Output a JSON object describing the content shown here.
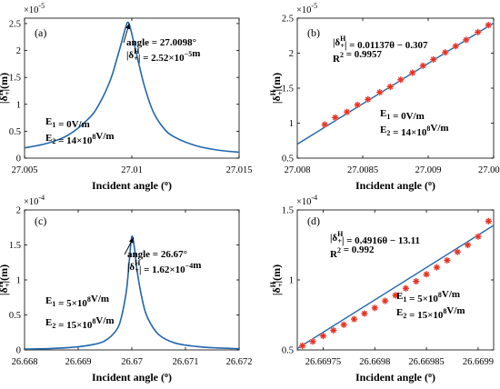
{
  "chart_data": [
    {
      "panel": "(a)",
      "type": "line",
      "xlabel": "Incident angle",
      "xlabel_unit": "(o)",
      "ylabel": "|δ+H|(m)",
      "ylabel_text": "|δ",
      "ylabel_sup": "H",
      "ylabel_sub": "+",
      "ylabel_tail": "|(m)",
      "xlim": [
        27.005,
        27.015
      ],
      "ylim": [
        0,
        2.6
      ],
      "y_multiplier": "×10",
      "y_multiplier_exp": "-5",
      "xticks": [
        "27.005",
        "27.01",
        "27.015"
      ],
      "xtick_values": [
        27.005,
        27.01,
        27.015
      ],
      "yticks": [
        "0",
        "0.5",
        "1",
        "1.5",
        "2",
        "2.5"
      ],
      "ytick_values": [
        0,
        0.5,
        1,
        1.5,
        2,
        2.5
      ],
      "series": [
        {
          "color": "#2166ac",
          "x": [
            27.005,
            27.006,
            27.007,
            27.008,
            27.0085,
            27.009,
            27.0093,
            27.0095,
            27.0097,
            27.0098,
            27.0099,
            27.0101,
            27.0103,
            27.0106,
            27.011,
            27.0115,
            27.012,
            27.013,
            27.014,
            27.015
          ],
          "y": [
            0.19,
            0.27,
            0.42,
            0.74,
            1.02,
            1.45,
            1.84,
            2.12,
            2.41,
            2.52,
            2.46,
            2.14,
            1.8,
            1.32,
            0.86,
            0.55,
            0.39,
            0.23,
            0.15,
            0.11
          ]
        }
      ],
      "annotations": [
        {
          "lines": [
            {
              "t": "angle = 27.0098°"
            },
            {
              "t": "|δ",
              "sup": "H",
              "sub": "+",
              "t2": "| = 2.52×10",
              "exp": "−5",
              "t3": "m"
            }
          ]
        },
        {
          "lines": [
            {
              "t": "E",
              "sub": "1",
              "t2": " = 0V/m"
            },
            {
              "t": "E",
              "sub": "2",
              "t2": " = 14×10",
              "exp": "8",
              "t3": "V/m"
            }
          ]
        }
      ]
    },
    {
      "panel": "(b)",
      "type": "scatter",
      "xlabel": "Incident angle",
      "xlabel_unit": "(o)",
      "ylabel": "|δ+H|(m)",
      "ylabel_text": "|δ",
      "ylabel_sup": "H",
      "ylabel_sub": "+",
      "ylabel_tail": "|(m)",
      "xlim": [
        27.008,
        27.0095
      ],
      "ylim": [
        0.5,
        2.5
      ],
      "y_multiplier": "×10",
      "y_multiplier_exp": "-5",
      "xticks": [
        "27.008",
        "27.0085",
        "27.009",
        "27.0095"
      ],
      "xtick_values": [
        27.008,
        27.0085,
        27.009,
        27.0095
      ],
      "yticks": [
        "0.5",
        "1",
        "1.5",
        "2",
        "2.5"
      ],
      "ytick_values": [
        0.5,
        1,
        1.5,
        2,
        2.5
      ],
      "fit": {
        "x": [
          27.008,
          27.0095
        ],
        "y": [
          0.7,
          2.43
        ],
        "color": "#2166ac"
      },
      "series": [
        {
          "marker": "asterisk",
          "color": "#e6301b",
          "x": [
            27.00821,
            27.00829,
            27.00838,
            27.00846,
            27.00854,
            27.00863,
            27.00871,
            27.00879,
            27.00888,
            27.00896,
            27.00904,
            27.00913,
            27.00921,
            27.00929,
            27.00938,
            27.00946
          ],
          "y": [
            0.98,
            1.08,
            1.16,
            1.26,
            1.34,
            1.44,
            1.52,
            1.62,
            1.72,
            1.82,
            1.91,
            2.01,
            2.1,
            2.19,
            2.3,
            2.4
          ]
        }
      ],
      "annotations": [
        {
          "lines": [
            {
              "t": "|δ",
              "sup": "H",
              "sub": "+",
              "t2": "| = 0.01137θ − 0.307"
            },
            {
              "t": "R",
              "exp": "2",
              "t3": " = 0.9957"
            }
          ]
        },
        {
          "lines": [
            {
              "t": "E",
              "sub": "1",
              "t2": " = 0V/m"
            },
            {
              "t": "E",
              "sub": "2",
              "t2": " = 14×10",
              "exp": "8",
              "t3": "V/m"
            }
          ]
        }
      ]
    },
    {
      "panel": "(c)",
      "type": "line",
      "xlabel": "Incident angle",
      "xlabel_unit": "(o)",
      "ylabel": "|δ+H|(m)",
      "ylabel_text": "|δ",
      "ylabel_sup": "H",
      "ylabel_sub": "+",
      "ylabel_tail": "|(m)",
      "xlim": [
        26.668,
        26.672
      ],
      "ylim": [
        0,
        2
      ],
      "y_multiplier": "×10",
      "y_multiplier_exp": "-4",
      "xticks": [
        "26.668",
        "26.669",
        "26.67",
        "26.671",
        "26.672"
      ],
      "xtick_values": [
        26.668,
        26.669,
        26.67,
        26.671,
        26.672
      ],
      "yticks": [
        "0",
        "0.5",
        "1",
        "1.5",
        "2"
      ],
      "ytick_values": [
        0,
        0.5,
        1,
        1.5,
        2
      ],
      "series": [
        {
          "color": "#2166ac",
          "x": [
            26.668,
            26.6685,
            26.669,
            26.6693,
            26.6695,
            26.6697,
            26.6698,
            26.6699,
            26.66995,
            26.67,
            26.67005,
            26.6701,
            26.6702,
            26.6703,
            26.6705,
            26.6708,
            26.6712,
            26.6716,
            26.672
          ],
          "y": [
            0.012,
            0.02,
            0.045,
            0.08,
            0.13,
            0.27,
            0.45,
            0.85,
            1.25,
            1.62,
            1.45,
            1.12,
            0.7,
            0.45,
            0.22,
            0.1,
            0.05,
            0.028,
            0.018
          ]
        }
      ],
      "annotations": [
        {
          "lines": [
            {
              "t": "angle = 26.67°"
            },
            {
              "t": "|δ",
              "sup": "H",
              "sub": "+",
              "t2": "| = 1.62×10",
              "exp": "−4",
              "t3": "m"
            }
          ]
        },
        {
          "lines": [
            {
              "t": "E",
              "sub": "1",
              "t2": " = 5×10",
              "exp": "8",
              "t3": "V/m"
            },
            {
              "t": "E",
              "sub": "2",
              "t2": " = 15×10",
              "exp": "8",
              "t3": "V/m"
            }
          ]
        }
      ]
    },
    {
      "panel": "(d)",
      "type": "scatter",
      "xlabel": "Incident angle",
      "xlabel_unit": "(o)",
      "ylabel": "|δ+H|(m)",
      "ylabel_text": "|δ",
      "ylabel_sup": "H",
      "ylabel_sub": "+",
      "ylabel_tail": "|(m)",
      "xlim": [
        26.669725,
        26.669915
      ],
      "ylim": [
        0.5,
        1.5
      ],
      "y_multiplier": "×10",
      "y_multiplier_exp": "-4",
      "xticks": [
        "26.66975",
        "26.6698",
        "26.66985",
        "26.6699"
      ],
      "xtick_values": [
        26.66975,
        26.6698,
        26.66985,
        26.6699
      ],
      "yticks": [
        "0.5",
        "1",
        "1.5"
      ],
      "ytick_values": [
        0.5,
        1,
        1.5
      ],
      "fit": {
        "x": [
          26.669725,
          26.669915
        ],
        "y": [
          0.51,
          1.39
        ],
        "color": "#2166ac"
      },
      "series": [
        {
          "marker": "asterisk",
          "color": "#e6301b",
          "x": [
            26.66973,
            26.66974,
            26.66975,
            26.66976,
            26.66977,
            26.66978,
            26.66979,
            26.6698,
            26.66981,
            26.66982,
            26.66983,
            26.66984,
            26.66985,
            26.66986,
            26.66987,
            26.66988,
            26.66989,
            26.6699,
            26.66991
          ],
          "y": [
            0.53,
            0.56,
            0.6,
            0.64,
            0.68,
            0.72,
            0.76,
            0.8,
            0.85,
            0.89,
            0.94,
            0.99,
            1.04,
            1.09,
            1.14,
            1.2,
            1.25,
            1.31,
            1.42
          ]
        }
      ],
      "annotations": [
        {
          "lines": [
            {
              "t": "|δ",
              "sup": "H",
              "sub": "+",
              "t2": "| = 0.4916θ − 13.11"
            },
            {
              "t": "R",
              "exp": "2",
              "t3": " = 0.992"
            }
          ]
        },
        {
          "lines": [
            {
              "t": "E",
              "sub": "1",
              "t2": " = 5×10",
              "exp": "8",
              "t3": "V/m"
            },
            {
              "t": "E",
              "sub": "2",
              "t2": " = 15×10",
              "exp": "8",
              "t3": "V/m"
            }
          ]
        }
      ]
    }
  ]
}
